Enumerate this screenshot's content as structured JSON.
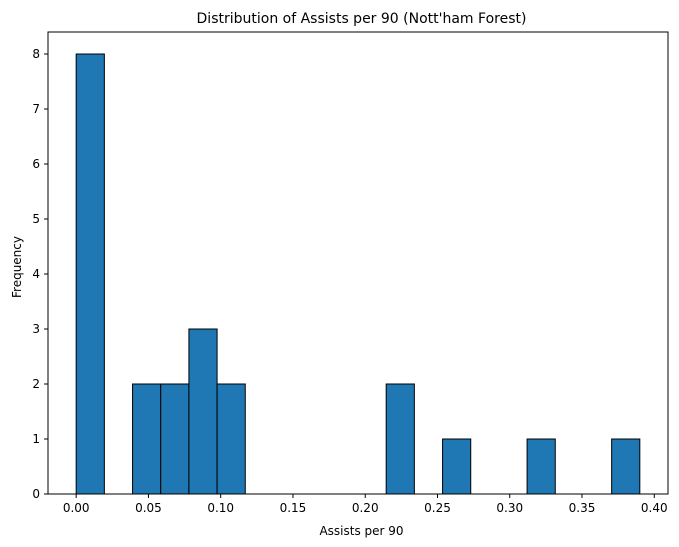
{
  "chart_data": {
    "type": "bar",
    "title": "Distribution of Assists per 90 (Nott'ham Forest)",
    "xlabel": "Assists per 90",
    "ylabel": "Frequency",
    "bins": [
      {
        "start": 0.0,
        "end": 0.0195,
        "count": 8
      },
      {
        "start": 0.0195,
        "end": 0.039,
        "count": 0
      },
      {
        "start": 0.039,
        "end": 0.0585,
        "count": 2
      },
      {
        "start": 0.0585,
        "end": 0.078,
        "count": 2
      },
      {
        "start": 0.078,
        "end": 0.0975,
        "count": 3
      },
      {
        "start": 0.0975,
        "end": 0.117,
        "count": 2
      },
      {
        "start": 0.117,
        "end": 0.1365,
        "count": 0
      },
      {
        "start": 0.1365,
        "end": 0.156,
        "count": 0
      },
      {
        "start": 0.156,
        "end": 0.1755,
        "count": 0
      },
      {
        "start": 0.1755,
        "end": 0.195,
        "count": 0
      },
      {
        "start": 0.195,
        "end": 0.2145,
        "count": 0
      },
      {
        "start": 0.2145,
        "end": 0.234,
        "count": 2
      },
      {
        "start": 0.234,
        "end": 0.2535,
        "count": 0
      },
      {
        "start": 0.2535,
        "end": 0.273,
        "count": 1
      },
      {
        "start": 0.273,
        "end": 0.2925,
        "count": 0
      },
      {
        "start": 0.2925,
        "end": 0.312,
        "count": 0
      },
      {
        "start": 0.312,
        "end": 0.3315,
        "count": 1
      },
      {
        "start": 0.3315,
        "end": 0.351,
        "count": 0
      },
      {
        "start": 0.351,
        "end": 0.3705,
        "count": 0
      },
      {
        "start": 0.3705,
        "end": 0.39,
        "count": 1
      }
    ],
    "xlim": [
      -0.0195,
      0.4095
    ],
    "ylim": [
      0,
      8.4
    ],
    "xticks": [
      0.0,
      0.05,
      0.1,
      0.15,
      0.2,
      0.25,
      0.3,
      0.35,
      0.4
    ],
    "xtick_labels": [
      "0.00",
      "0.05",
      "0.10",
      "0.15",
      "0.20",
      "0.25",
      "0.30",
      "0.35",
      "0.40"
    ],
    "yticks": [
      0,
      1,
      2,
      3,
      4,
      5,
      6,
      7,
      8
    ],
    "ytick_labels": [
      "0",
      "1",
      "2",
      "3",
      "4",
      "5",
      "6",
      "7",
      "8"
    ],
    "grid": false,
    "bar_color": "#1f77b4",
    "edge_color": "#000000"
  }
}
